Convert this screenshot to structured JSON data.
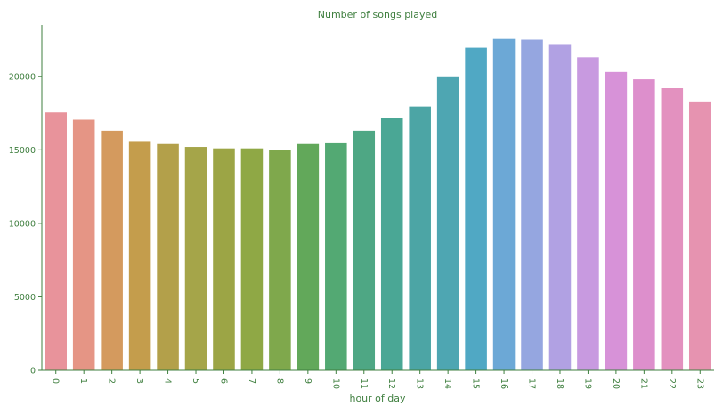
{
  "chart_data": {
    "type": "bar",
    "title": "Number of songs played",
    "xlabel": "hour of day",
    "ylabel": "",
    "categories": [
      "0",
      "1",
      "2",
      "3",
      "4",
      "5",
      "6",
      "7",
      "8",
      "9",
      "10",
      "11",
      "12",
      "13",
      "14",
      "15",
      "16",
      "17",
      "18",
      "19",
      "20",
      "21",
      "22",
      "23"
    ],
    "values": [
      17550,
      17050,
      16300,
      15600,
      15400,
      15200,
      15100,
      15100,
      15000,
      15400,
      15450,
      16300,
      17200,
      17950,
      20000,
      21950,
      22550,
      22500,
      22200,
      21300,
      20300,
      19800,
      19200,
      18300
    ],
    "ylim": [
      0,
      23500
    ],
    "yticks": [
      0,
      5000,
      10000,
      15000,
      20000
    ],
    "grid": false,
    "legend": "none",
    "text_color": "#3f7f3f",
    "axis_color": "#3f7f3f",
    "bar_colors": [
      "#e8939b",
      "#e59585",
      "#d49a5e",
      "#c49d4c",
      "#b3a04a",
      "#a5a549",
      "#9ca545",
      "#8fa845",
      "#7fa84c",
      "#62a85a",
      "#53a973",
      "#4ea784",
      "#4aa795",
      "#4ca5a5",
      "#4ea6b2",
      "#50a8c4",
      "#6ca8d6",
      "#95a6e0",
      "#b1a1e3",
      "#c89ae0",
      "#d792d8",
      "#dd8fcc",
      "#e391bf",
      "#e693b0"
    ]
  }
}
